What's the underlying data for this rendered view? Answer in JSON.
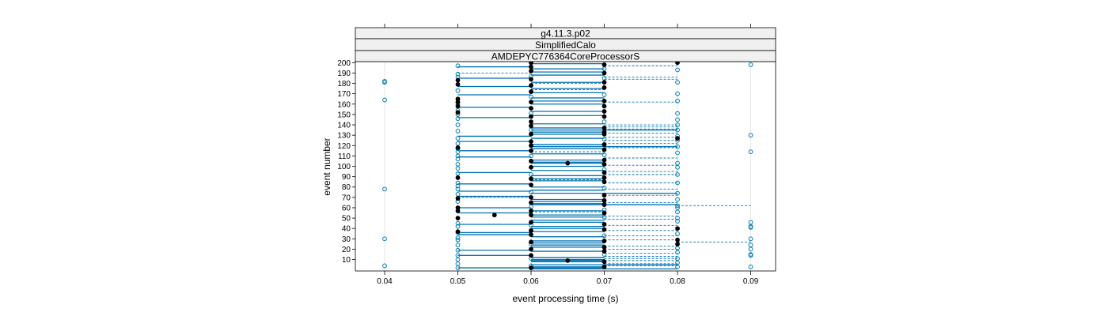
{
  "chart_data": {
    "type": "scatter",
    "strips": [
      "g4.11.3.p02",
      "SimplifiedCalo",
      "AMDEPYC776364CoreProcessorS"
    ],
    "xlabel": "event processing time (s)",
    "ylabel": "event number",
    "xlim": [
      0.036,
      0.0934
    ],
    "ylim": [
      -1,
      201
    ],
    "x_ticks": [
      0.04,
      0.05,
      0.06,
      0.07,
      0.08,
      0.09
    ],
    "x_tick_labels": [
      "0.04",
      "0.05",
      "0.06",
      "0.07",
      "0.08",
      "0.09"
    ],
    "y_ticks": [
      10,
      20,
      30,
      40,
      50,
      60,
      70,
      80,
      90,
      100,
      110,
      120,
      130,
      140,
      150,
      160,
      170,
      180,
      190,
      200
    ],
    "y_tick_labels": [
      "10",
      "20",
      "30",
      "40",
      "50",
      "60",
      "70",
      "80",
      "90",
      "100",
      "110",
      "120",
      "130",
      "140",
      "150",
      "160",
      "170",
      "180",
      "190",
      "200"
    ],
    "grid": "vertical lines at x ticks",
    "legend": "none",
    "colors": {
      "open": "#0080b3",
      "filled": "#000000",
      "line": "#0072b2",
      "grid": "#e6e6e6",
      "strip_bg": "#f0f0f0"
    },
    "series": [
      {
        "style": "open circles",
        "points": [
          [
            0.04,
            4
          ],
          [
            0.04,
            30
          ],
          [
            0.04,
            78
          ],
          [
            0.04,
            164
          ],
          [
            0.04,
            181
          ],
          [
            0.04,
            182
          ],
          [
            0.05,
            2
          ],
          [
            0.05,
            6
          ],
          [
            0.05,
            10
          ],
          [
            0.05,
            14
          ],
          [
            0.05,
            19
          ],
          [
            0.05,
            24
          ],
          [
            0.05,
            29
          ],
          [
            0.05,
            31
          ],
          [
            0.05,
            36
          ],
          [
            0.05,
            42
          ],
          [
            0.05,
            45
          ],
          [
            0.05,
            66
          ],
          [
            0.05,
            73
          ],
          [
            0.05,
            78
          ],
          [
            0.05,
            81
          ],
          [
            0.05,
            84
          ],
          [
            0.05,
            93
          ],
          [
            0.05,
            98
          ],
          [
            0.05,
            102
          ],
          [
            0.05,
            107
          ],
          [
            0.05,
            110
          ],
          [
            0.05,
            114
          ],
          [
            0.05,
            117
          ],
          [
            0.05,
            122
          ],
          [
            0.05,
            127
          ],
          [
            0.05,
            134
          ],
          [
            0.05,
            140
          ],
          [
            0.05,
            146
          ],
          [
            0.05,
            150
          ],
          [
            0.05,
            154
          ],
          [
            0.05,
            160
          ],
          [
            0.05,
            173
          ],
          [
            0.05,
            186
          ],
          [
            0.05,
            189
          ],
          [
            0.05,
            197
          ],
          [
            0.06,
            4
          ],
          [
            0.06,
            11
          ],
          [
            0.06,
            25
          ],
          [
            0.06,
            43
          ],
          [
            0.06,
            61
          ],
          [
            0.06,
            75
          ],
          [
            0.06,
            92
          ],
          [
            0.06,
            110
          ],
          [
            0.06,
            135
          ],
          [
            0.06,
            151
          ],
          [
            0.06,
            167
          ],
          [
            0.06,
            187
          ],
          [
            0.07,
            15
          ],
          [
            0.07,
            33
          ],
          [
            0.07,
            51
          ],
          [
            0.07,
            58
          ],
          [
            0.07,
            79
          ],
          [
            0.07,
            97
          ],
          [
            0.07,
            111
          ],
          [
            0.07,
            126
          ],
          [
            0.07,
            143
          ],
          [
            0.07,
            169
          ],
          [
            0.07,
            185
          ],
          [
            0.07,
            194
          ],
          [
            0.08,
            3
          ],
          [
            0.08,
            7
          ],
          [
            0.08,
            11
          ],
          [
            0.08,
            17
          ],
          [
            0.08,
            21
          ],
          [
            0.08,
            35
          ],
          [
            0.08,
            47
          ],
          [
            0.08,
            50
          ],
          [
            0.08,
            56
          ],
          [
            0.08,
            60
          ],
          [
            0.08,
            62
          ],
          [
            0.08,
            68
          ],
          [
            0.08,
            74
          ],
          [
            0.08,
            84
          ],
          [
            0.08,
            92
          ],
          [
            0.08,
            99
          ],
          [
            0.08,
            103
          ],
          [
            0.08,
            113
          ],
          [
            0.08,
            119
          ],
          [
            0.08,
            125
          ],
          [
            0.08,
            129
          ],
          [
            0.08,
            135
          ],
          [
            0.08,
            140
          ],
          [
            0.08,
            145
          ],
          [
            0.08,
            151
          ],
          [
            0.08,
            163
          ],
          [
            0.08,
            170
          ],
          [
            0.08,
            181
          ],
          [
            0.08,
            193
          ],
          [
            0.09,
            3
          ],
          [
            0.09,
            14
          ],
          [
            0.09,
            15
          ],
          [
            0.09,
            20
          ],
          [
            0.09,
            24
          ],
          [
            0.09,
            30
          ],
          [
            0.09,
            41
          ],
          [
            0.09,
            42
          ],
          [
            0.09,
            46
          ],
          [
            0.09,
            114
          ],
          [
            0.09,
            130
          ],
          [
            0.09,
            198
          ]
        ]
      },
      {
        "style": "filled circles",
        "points": [
          [
            0.05,
            37
          ],
          [
            0.05,
            50
          ],
          [
            0.05,
            57
          ],
          [
            0.05,
            60
          ],
          [
            0.05,
            69
          ],
          [
            0.05,
            89
          ],
          [
            0.05,
            118
          ],
          [
            0.05,
            152
          ],
          [
            0.05,
            158
          ],
          [
            0.05,
            162
          ],
          [
            0.05,
            165
          ],
          [
            0.05,
            179
          ],
          [
            0.05,
            183
          ],
          [
            0.055,
            53
          ],
          [
            0.065,
            9
          ],
          [
            0.065,
            103
          ],
          [
            0.06,
            2
          ],
          [
            0.06,
            14
          ],
          [
            0.06,
            20
          ],
          [
            0.06,
            27
          ],
          [
            0.06,
            34
          ],
          [
            0.06,
            38
          ],
          [
            0.06,
            46
          ],
          [
            0.06,
            53
          ],
          [
            0.06,
            57
          ],
          [
            0.06,
            65
          ],
          [
            0.06,
            70
          ],
          [
            0.06,
            82
          ],
          [
            0.06,
            88
          ],
          [
            0.06,
            99
          ],
          [
            0.06,
            105
          ],
          [
            0.06,
            115
          ],
          [
            0.06,
            120
          ],
          [
            0.06,
            124
          ],
          [
            0.06,
            131
          ],
          [
            0.06,
            139
          ],
          [
            0.06,
            143
          ],
          [
            0.06,
            148
          ],
          [
            0.06,
            156
          ],
          [
            0.06,
            162
          ],
          [
            0.06,
            172
          ],
          [
            0.06,
            178
          ],
          [
            0.06,
            184
          ],
          [
            0.06,
            192
          ],
          [
            0.06,
            196
          ],
          [
            0.06,
            200
          ],
          [
            0.07,
            3
          ],
          [
            0.07,
            8
          ],
          [
            0.07,
            18
          ],
          [
            0.07,
            22
          ],
          [
            0.07,
            28
          ],
          [
            0.07,
            39
          ],
          [
            0.07,
            44
          ],
          [
            0.07,
            55
          ],
          [
            0.07,
            63
          ],
          [
            0.07,
            67
          ],
          [
            0.07,
            72
          ],
          [
            0.07,
            85
          ],
          [
            0.07,
            89
          ],
          [
            0.07,
            94
          ],
          [
            0.07,
            102
          ],
          [
            0.07,
            106
          ],
          [
            0.07,
            116
          ],
          [
            0.07,
            121
          ],
          [
            0.07,
            131
          ],
          [
            0.07,
            133
          ],
          [
            0.07,
            137
          ],
          [
            0.07,
            148
          ],
          [
            0.07,
            153
          ],
          [
            0.07,
            158
          ],
          [
            0.07,
            163
          ],
          [
            0.07,
            176
          ],
          [
            0.07,
            181
          ],
          [
            0.07,
            190
          ],
          [
            0.07,
            198
          ],
          [
            0.08,
            25
          ],
          [
            0.08,
            29
          ],
          [
            0.08,
            40
          ],
          [
            0.08,
            127
          ],
          [
            0.08,
            200
          ]
        ]
      }
    ],
    "solid_segments": [
      [
        1,
        0.06,
        0.08
      ],
      [
        2,
        0.05,
        0.07
      ],
      [
        3,
        0.06,
        0.07
      ],
      [
        5,
        0.06,
        0.08
      ],
      [
        8,
        0.06,
        0.07
      ],
      [
        9,
        0.06,
        0.07
      ],
      [
        10,
        0.06,
        0.07
      ],
      [
        12,
        0.06,
        0.07
      ],
      [
        14,
        0.05,
        0.06
      ],
      [
        18,
        0.06,
        0.07
      ],
      [
        19,
        0.05,
        0.06
      ],
      [
        22,
        0.06,
        0.07
      ],
      [
        24,
        0.06,
        0.07
      ],
      [
        26,
        0.06,
        0.07
      ],
      [
        28,
        0.06,
        0.07
      ],
      [
        32,
        0.06,
        0.07
      ],
      [
        34,
        0.05,
        0.06
      ],
      [
        36,
        0.05,
        0.06
      ],
      [
        37,
        0.06,
        0.07
      ],
      [
        40,
        0.06,
        0.07
      ],
      [
        42,
        0.06,
        0.07
      ],
      [
        44,
        0.05,
        0.06
      ],
      [
        46,
        0.06,
        0.07
      ],
      [
        48,
        0.06,
        0.07
      ],
      [
        51,
        0.06,
        0.07
      ],
      [
        53,
        0.06,
        0.07
      ],
      [
        55,
        0.05,
        0.06
      ],
      [
        57,
        0.06,
        0.07
      ],
      [
        60,
        0.05,
        0.06
      ],
      [
        63,
        0.06,
        0.08
      ],
      [
        64,
        0.06,
        0.07
      ],
      [
        66,
        0.06,
        0.07
      ],
      [
        68,
        0.06,
        0.07
      ],
      [
        71,
        0.05,
        0.06
      ],
      [
        74,
        0.06,
        0.08
      ],
      [
        76,
        0.05,
        0.06
      ],
      [
        77,
        0.06,
        0.07
      ],
      [
        80,
        0.06,
        0.07
      ],
      [
        83,
        0.05,
        0.06
      ],
      [
        86,
        0.06,
        0.07
      ],
      [
        88,
        0.06,
        0.07
      ],
      [
        91,
        0.06,
        0.07
      ],
      [
        94,
        0.05,
        0.06
      ],
      [
        96,
        0.06,
        0.07
      ],
      [
        100,
        0.06,
        0.07
      ],
      [
        103,
        0.06,
        0.07
      ],
      [
        104,
        0.06,
        0.07
      ],
      [
        106,
        0.06,
        0.07
      ],
      [
        109,
        0.05,
        0.06
      ],
      [
        112,
        0.06,
        0.07
      ],
      [
        115,
        0.05,
        0.06
      ],
      [
        117,
        0.06,
        0.07
      ],
      [
        119,
        0.06,
        0.08
      ],
      [
        121,
        0.06,
        0.07
      ],
      [
        124,
        0.05,
        0.06
      ],
      [
        127,
        0.06,
        0.07
      ],
      [
        129,
        0.05,
        0.06
      ],
      [
        131,
        0.06,
        0.07
      ],
      [
        133,
        0.06,
        0.07
      ],
      [
        135,
        0.06,
        0.08
      ],
      [
        137,
        0.06,
        0.07
      ],
      [
        141,
        0.06,
        0.07
      ],
      [
        147,
        0.05,
        0.06
      ],
      [
        149,
        0.06,
        0.07
      ],
      [
        153,
        0.06,
        0.07
      ],
      [
        157,
        0.05,
        0.06
      ],
      [
        160,
        0.06,
        0.07
      ],
      [
        163,
        0.06,
        0.07
      ],
      [
        166,
        0.06,
        0.07
      ],
      [
        169,
        0.05,
        0.06
      ],
      [
        171,
        0.06,
        0.07
      ],
      [
        175,
        0.06,
        0.07
      ],
      [
        177,
        0.05,
        0.06
      ],
      [
        181,
        0.06,
        0.07
      ],
      [
        185,
        0.05,
        0.06
      ],
      [
        188,
        0.06,
        0.07
      ],
      [
        191,
        0.06,
        0.07
      ],
      [
        194,
        0.06,
        0.07
      ],
      [
        196,
        0.05,
        0.06
      ],
      [
        199,
        0.06,
        0.07
      ]
    ],
    "dashed_segments": [
      [
        4,
        0.07,
        0.08
      ],
      [
        6,
        0.07,
        0.08
      ],
      [
        9,
        0.07,
        0.08
      ],
      [
        11,
        0.07,
        0.08
      ],
      [
        13,
        0.07,
        0.08
      ],
      [
        16,
        0.07,
        0.08
      ],
      [
        20,
        0.07,
        0.08
      ],
      [
        23,
        0.07,
        0.08
      ],
      [
        27,
        0.08,
        0.09
      ],
      [
        29,
        0.07,
        0.08
      ],
      [
        33,
        0.07,
        0.08
      ],
      [
        38,
        0.07,
        0.08
      ],
      [
        43,
        0.07,
        0.08
      ],
      [
        49,
        0.07,
        0.08
      ],
      [
        52,
        0.07,
        0.08
      ],
      [
        56,
        0.06,
        0.07
      ],
      [
        62,
        0.08,
        0.09
      ],
      [
        65,
        0.07,
        0.08
      ],
      [
        70,
        0.05,
        0.06
      ],
      [
        72,
        0.07,
        0.08
      ],
      [
        78,
        0.07,
        0.08
      ],
      [
        84,
        0.07,
        0.08
      ],
      [
        87,
        0.06,
        0.07
      ],
      [
        92,
        0.07,
        0.08
      ],
      [
        95,
        0.07,
        0.08
      ],
      [
        101,
        0.07,
        0.08
      ],
      [
        108,
        0.07,
        0.08
      ],
      [
        114,
        0.06,
        0.07
      ],
      [
        118,
        0.07,
        0.08
      ],
      [
        122,
        0.07,
        0.08
      ],
      [
        125,
        0.07,
        0.08
      ],
      [
        128,
        0.07,
        0.08
      ],
      [
        132,
        0.07,
        0.08
      ],
      [
        136,
        0.07,
        0.08
      ],
      [
        138,
        0.07,
        0.08
      ],
      [
        140,
        0.07,
        0.08
      ],
      [
        162,
        0.07,
        0.08
      ],
      [
        174,
        0.06,
        0.07
      ],
      [
        180,
        0.06,
        0.07
      ],
      [
        184,
        0.07,
        0.08
      ],
      [
        186,
        0.07,
        0.08
      ],
      [
        190,
        0.05,
        0.06
      ],
      [
        197,
        0.07,
        0.08
      ]
    ]
  }
}
